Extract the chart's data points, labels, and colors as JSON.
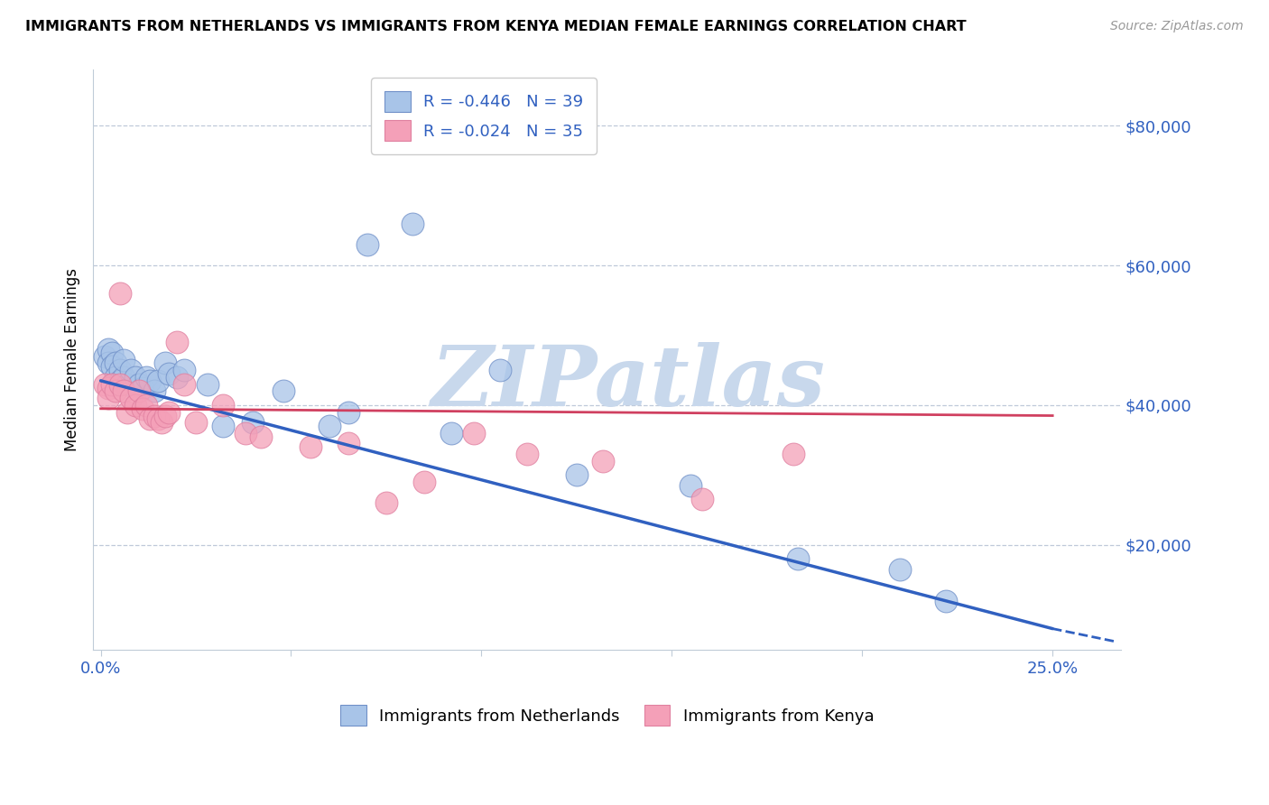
{
  "title": "IMMIGRANTS FROM NETHERLANDS VS IMMIGRANTS FROM KENYA MEDIAN FEMALE EARNINGS CORRELATION CHART",
  "source": "Source: ZipAtlas.com",
  "ylabel": "Median Female Earnings",
  "netherlands_R": -0.446,
  "netherlands_N": 39,
  "kenya_R": -0.024,
  "kenya_N": 35,
  "netherlands_color": "#a8c4e8",
  "kenya_color": "#f4a0b8",
  "netherlands_line_color": "#3060c0",
  "kenya_line_color": "#d04060",
  "watermark_color": "#c8d8ec",
  "xlim": [
    -0.002,
    0.268
  ],
  "ylim": [
    5000,
    88000
  ],
  "yticks": [
    20000,
    40000,
    60000,
    80000
  ],
  "xticks": [
    0.0,
    0.05,
    0.1,
    0.15,
    0.2,
    0.25
  ],
  "nl_line_x0": 0.0,
  "nl_line_y0": 43500,
  "nl_line_x1": 0.25,
  "nl_line_y1": 8000,
  "nl_line_xdash0": 0.25,
  "nl_line_ydash0": 8000,
  "nl_line_xdash1": 0.267,
  "nl_line_ydash1": 6100,
  "ke_line_x0": 0.0,
  "ke_line_y0": 39500,
  "ke_line_x1": 0.25,
  "ke_line_y1": 38500,
  "netherlands_x": [
    0.001,
    0.002,
    0.002,
    0.003,
    0.003,
    0.004,
    0.004,
    0.005,
    0.005,
    0.006,
    0.006,
    0.007,
    0.008,
    0.009,
    0.01,
    0.011,
    0.012,
    0.013,
    0.014,
    0.015,
    0.017,
    0.018,
    0.02,
    0.022,
    0.028,
    0.032,
    0.04,
    0.048,
    0.06,
    0.065,
    0.07,
    0.082,
    0.092,
    0.105,
    0.125,
    0.155,
    0.183,
    0.21,
    0.222
  ],
  "netherlands_y": [
    47000,
    48000,
    46000,
    47500,
    45500,
    46000,
    44000,
    45000,
    43500,
    44000,
    46500,
    43000,
    45000,
    44000,
    43000,
    42500,
    44000,
    43500,
    42000,
    43500,
    46000,
    44500,
    44000,
    45000,
    43000,
    37000,
    37500,
    42000,
    37000,
    39000,
    63000,
    66000,
    36000,
    45000,
    30000,
    28500,
    18000,
    16500,
    12000
  ],
  "kenya_x": [
    0.001,
    0.002,
    0.002,
    0.003,
    0.004,
    0.005,
    0.005,
    0.006,
    0.007,
    0.008,
    0.009,
    0.01,
    0.011,
    0.012,
    0.013,
    0.014,
    0.015,
    0.016,
    0.017,
    0.018,
    0.02,
    0.022,
    0.025,
    0.032,
    0.038,
    0.042,
    0.055,
    0.065,
    0.075,
    0.085,
    0.098,
    0.112,
    0.132,
    0.158,
    0.182
  ],
  "kenya_y": [
    43000,
    42500,
    41000,
    43000,
    42000,
    56000,
    43000,
    42000,
    39000,
    41000,
    40000,
    42000,
    39500,
    40000,
    38000,
    38500,
    38000,
    37500,
    38500,
    39000,
    49000,
    43000,
    37500,
    40000,
    36000,
    35500,
    34000,
    34500,
    26000,
    29000,
    36000,
    33000,
    32000,
    26500,
    33000
  ]
}
